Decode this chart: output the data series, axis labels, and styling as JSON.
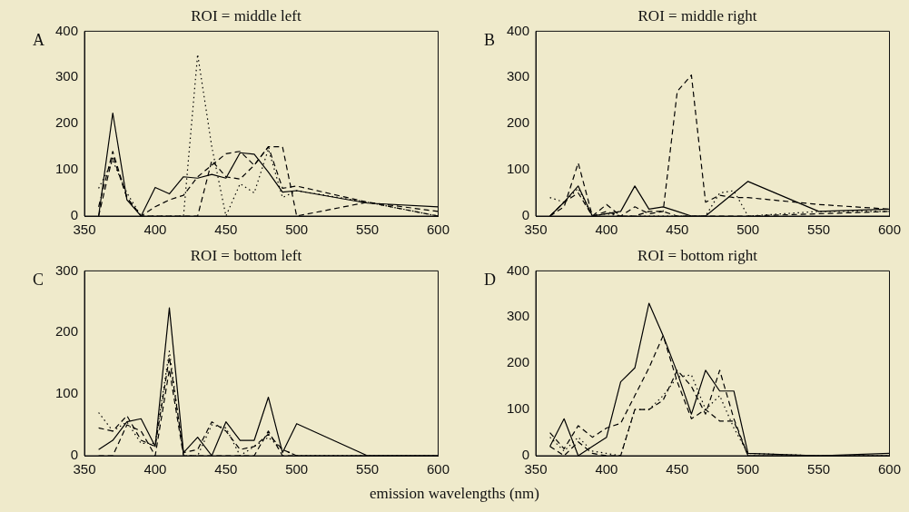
{
  "chart_data": [
    {
      "type": "line",
      "title": "ROI = middle left",
      "annotations": [
        "A"
      ],
      "x": [
        360,
        370,
        380,
        390,
        400,
        410,
        420,
        430,
        440,
        450,
        460,
        470,
        480,
        490,
        500,
        550,
        600
      ],
      "xlim": [
        350,
        600
      ],
      "xticks": [
        350,
        400,
        450,
        500,
        550,
        600
      ],
      "ylim": [
        0,
        400
      ],
      "yticks": [
        0,
        100,
        200,
        300,
        400
      ],
      "legend": false,
      "grid": false,
      "marker": "none",
      "series": [
        {
          "color": "#000000",
          "line_style": "solid",
          "values": [
            0,
            223,
            35,
            0,
            62,
            48,
            85,
            82,
            90,
            82,
            137,
            134,
            95,
            52,
            55,
            28,
            20
          ]
        },
        {
          "color": "#000000",
          "line_style": "dashed",
          "values": [
            20,
            140,
            40,
            0,
            20,
            35,
            45,
            85,
            110,
            135,
            140,
            110,
            150,
            60,
            65,
            30,
            10
          ]
        },
        {
          "color": "#000000",
          "line_style": "dotted",
          "values": [
            60,
            120,
            50,
            0,
            0,
            0,
            0,
            350,
            150,
            0,
            70,
            50,
            145,
            40,
            55,
            30,
            0
          ]
        },
        {
          "color": "#000000",
          "line_style": "dashed",
          "values": [
            0,
            130,
            40,
            0,
            0,
            0,
            0,
            0,
            120,
            85,
            80,
            110,
            150,
            150,
            0,
            30,
            0
          ]
        }
      ]
    },
    {
      "type": "line",
      "title": "ROI = middle right",
      "annotations": [
        "B"
      ],
      "x": [
        360,
        370,
        380,
        390,
        400,
        410,
        420,
        430,
        440,
        450,
        460,
        470,
        480,
        490,
        500,
        550,
        600
      ],
      "xlim": [
        350,
        600
      ],
      "xticks": [
        350,
        400,
        450,
        500,
        550,
        600
      ],
      "ylim": [
        0,
        400
      ],
      "yticks": [
        0,
        100,
        200,
        300,
        400
      ],
      "legend": false,
      "grid": false,
      "marker": "none",
      "series": [
        {
          "color": "#000000",
          "line_style": "solid",
          "values": [
            0,
            30,
            65,
            0,
            5,
            10,
            65,
            15,
            20,
            10,
            0,
            0,
            25,
            50,
            75,
            10,
            15
          ]
        },
        {
          "color": "#000000",
          "line_style": "dashed",
          "values": [
            0,
            30,
            50,
            0,
            10,
            0,
            20,
            5,
            10,
            270,
            305,
            30,
            45,
            40,
            40,
            25,
            15
          ]
        },
        {
          "color": "#000000",
          "line_style": "dotted",
          "values": [
            40,
            30,
            60,
            0,
            5,
            0,
            0,
            0,
            0,
            0,
            0,
            0,
            50,
            55,
            0,
            10,
            10
          ]
        },
        {
          "color": "#000000",
          "line_style": "dashed",
          "values": [
            0,
            20,
            115,
            0,
            25,
            0,
            0,
            10,
            10,
            0,
            0,
            0,
            0,
            0,
            0,
            5,
            10
          ]
        }
      ]
    },
    {
      "type": "line",
      "title": "ROI = bottom left",
      "annotations": [
        "C"
      ],
      "x": [
        360,
        370,
        380,
        390,
        400,
        410,
        420,
        430,
        440,
        450,
        460,
        470,
        480,
        490,
        500,
        550,
        600
      ],
      "xlim": [
        350,
        600
      ],
      "xticks": [
        350,
        400,
        450,
        500,
        550,
        600
      ],
      "ylim": [
        0,
        300
      ],
      "yticks": [
        0,
        100,
        200,
        300
      ],
      "legend": false,
      "grid": false,
      "marker": "none",
      "series": [
        {
          "color": "#000000",
          "line_style": "solid",
          "values": [
            10,
            25,
            55,
            60,
            15,
            240,
            5,
            30,
            0,
            55,
            25,
            25,
            95,
            5,
            52,
            0,
            0
          ]
        },
        {
          "color": "#000000",
          "line_style": "dashed",
          "values": [
            45,
            40,
            65,
            25,
            15,
            160,
            5,
            10,
            55,
            40,
            10,
            15,
            35,
            10,
            0,
            0,
            0
          ]
        },
        {
          "color": "#000000",
          "line_style": "dotted",
          "values": [
            70,
            40,
            55,
            20,
            20,
            170,
            0,
            0,
            50,
            45,
            0,
            15,
            30,
            10,
            0,
            0,
            0
          ]
        },
        {
          "color": "#000000",
          "line_style": "dashed",
          "values": [
            0,
            0,
            50,
            40,
            0,
            140,
            0,
            0,
            0,
            0,
            0,
            0,
            40,
            0,
            0,
            0,
            0
          ]
        }
      ]
    },
    {
      "type": "line",
      "title": "ROI = bottom right",
      "annotations": [
        "D"
      ],
      "xlabel": "emission wavelengths (nm)",
      "x": [
        360,
        370,
        380,
        390,
        400,
        410,
        420,
        430,
        440,
        450,
        460,
        470,
        480,
        490,
        500,
        550,
        600
      ],
      "xlim": [
        350,
        600
      ],
      "xticks": [
        350,
        400,
        450,
        500,
        550,
        600
      ],
      "ylim": [
        0,
        400
      ],
      "yticks": [
        0,
        100,
        200,
        300,
        400
      ],
      "legend": false,
      "grid": false,
      "marker": "none",
      "series": [
        {
          "color": "#000000",
          "line_style": "solid",
          "values": [
            20,
            80,
            0,
            20,
            40,
            160,
            190,
            330,
            260,
            180,
            90,
            185,
            140,
            140,
            5,
            0,
            5
          ]
        },
        {
          "color": "#000000",
          "line_style": "dashed",
          "values": [
            50,
            15,
            65,
            40,
            60,
            70,
            130,
            190,
            260,
            160,
            80,
            100,
            75,
            75,
            0,
            0,
            0
          ]
        },
        {
          "color": "#000000",
          "line_style": "dotted",
          "values": [
            40,
            10,
            40,
            10,
            5,
            0,
            100,
            100,
            130,
            170,
            175,
            100,
            130,
            60,
            5,
            0,
            0
          ]
        },
        {
          "color": "#000000",
          "line_style": "dashed",
          "values": [
            20,
            0,
            30,
            5,
            0,
            0,
            100,
            100,
            120,
            185,
            150,
            90,
            185,
            80,
            0,
            0,
            0
          ]
        }
      ]
    }
  ]
}
